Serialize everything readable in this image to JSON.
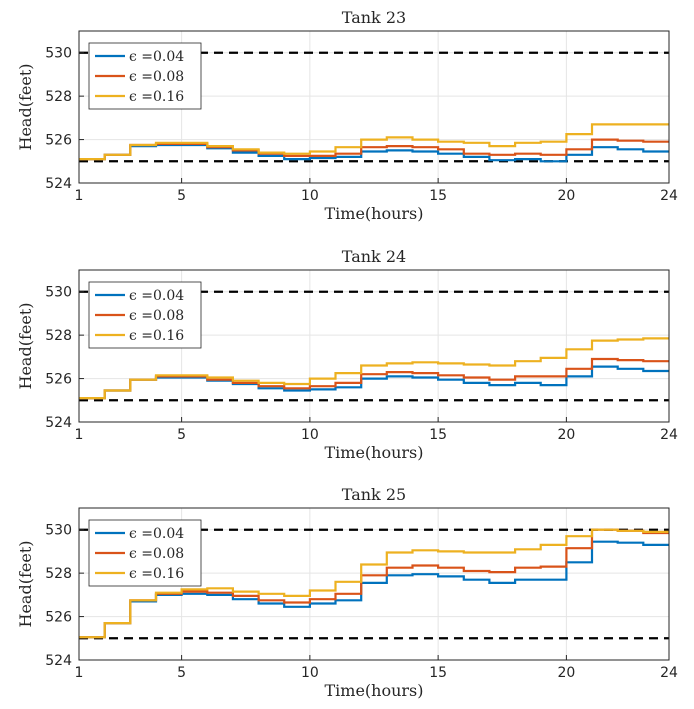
{
  "chart_data": [
    {
      "type": "line",
      "step": true,
      "title": "Tank 23",
      "xlabel": "Time(hours)",
      "ylabel": "Head(feet)",
      "xlim": [
        1,
        24
      ],
      "ylim": [
        524,
        531
      ],
      "xticks": [
        1,
        5,
        10,
        15,
        20,
        24
      ],
      "yticks": [
        524,
        526,
        528,
        530
      ],
      "grid": true,
      "legend_position": "top-left",
      "bounds": [
        525,
        530
      ],
      "x": [
        1,
        2,
        3,
        4,
        5,
        6,
        7,
        8,
        9,
        10,
        11,
        12,
        13,
        14,
        15,
        16,
        17,
        18,
        19,
        20,
        21,
        22,
        23,
        24
      ],
      "series": [
        {
          "name": "ϵ =0.04",
          "color": "#0072BD",
          "values": [
            525.1,
            525.3,
            525.7,
            525.75,
            525.75,
            525.6,
            525.4,
            525.25,
            525.1,
            525.15,
            525.2,
            525.45,
            525.5,
            525.45,
            525.35,
            525.2,
            525.05,
            525.1,
            525.0,
            525.3,
            525.65,
            525.55,
            525.45,
            525.45
          ]
        },
        {
          "name": "ϵ =0.08",
          "color": "#D95319",
          "values": [
            525.1,
            525.3,
            525.75,
            525.8,
            525.8,
            525.65,
            525.5,
            525.35,
            525.25,
            525.25,
            525.35,
            525.65,
            525.7,
            525.65,
            525.55,
            525.35,
            525.3,
            525.35,
            525.3,
            525.55,
            526.0,
            525.95,
            525.9,
            525.9
          ]
        },
        {
          "name": "ϵ =0.16",
          "color": "#EDB120",
          "values": [
            525.1,
            525.3,
            525.75,
            525.85,
            525.85,
            525.7,
            525.55,
            525.4,
            525.35,
            525.45,
            525.65,
            526.0,
            526.1,
            526.0,
            525.9,
            525.85,
            525.7,
            525.85,
            525.9,
            526.25,
            526.7,
            526.7,
            526.7,
            526.7
          ]
        }
      ]
    },
    {
      "type": "line",
      "step": true,
      "title": "Tank 24",
      "xlabel": "Time(hours)",
      "ylabel": "Head(feet)",
      "xlim": [
        1,
        24
      ],
      "ylim": [
        524,
        531
      ],
      "xticks": [
        1,
        5,
        10,
        15,
        20,
        24
      ],
      "yticks": [
        524,
        526,
        528,
        530
      ],
      "grid": true,
      "legend_position": "top-left",
      "bounds": [
        525,
        530
      ],
      "x": [
        1,
        2,
        3,
        4,
        5,
        6,
        7,
        8,
        9,
        10,
        11,
        12,
        13,
        14,
        15,
        16,
        17,
        18,
        19,
        20,
        21,
        22,
        23,
        24
      ],
      "series": [
        {
          "name": "ϵ =0.04",
          "color": "#0072BD",
          "values": [
            525.1,
            525.45,
            525.95,
            526.05,
            526.05,
            525.9,
            525.75,
            525.55,
            525.45,
            525.5,
            525.6,
            526.0,
            526.1,
            526.05,
            525.95,
            525.8,
            525.7,
            525.8,
            525.7,
            526.1,
            526.55,
            526.45,
            526.35,
            526.35
          ]
        },
        {
          "name": "ϵ =0.08",
          "color": "#D95319",
          "values": [
            525.1,
            525.45,
            525.95,
            526.1,
            526.1,
            525.95,
            525.8,
            525.65,
            525.55,
            525.65,
            525.8,
            526.2,
            526.3,
            526.25,
            526.15,
            526.05,
            525.95,
            526.1,
            526.1,
            526.45,
            526.9,
            526.85,
            526.8,
            526.8
          ]
        },
        {
          "name": "ϵ =0.16",
          "color": "#EDB120",
          "values": [
            525.1,
            525.45,
            525.95,
            526.15,
            526.15,
            526.05,
            525.9,
            525.8,
            525.75,
            526.0,
            526.25,
            526.6,
            526.7,
            526.75,
            526.7,
            526.65,
            526.6,
            526.8,
            526.95,
            527.35,
            527.75,
            527.8,
            527.85,
            527.85
          ]
        }
      ]
    },
    {
      "type": "line",
      "step": true,
      "title": "Tank 25",
      "xlabel": "Time(hours)",
      "ylabel": "Head(feet)",
      "xlim": [
        1,
        24
      ],
      "ylim": [
        524,
        531
      ],
      "xticks": [
        1,
        5,
        10,
        15,
        20,
        24
      ],
      "yticks": [
        524,
        526,
        528,
        530
      ],
      "grid": true,
      "legend_position": "top-left",
      "bounds": [
        525,
        530
      ],
      "x": [
        1,
        2,
        3,
        4,
        5,
        6,
        7,
        8,
        9,
        10,
        11,
        12,
        13,
        14,
        15,
        16,
        17,
        18,
        19,
        20,
        21,
        22,
        23,
        24
      ],
      "series": [
        {
          "name": "ϵ =0.04",
          "color": "#0072BD",
          "values": [
            525.05,
            525.7,
            526.7,
            527.0,
            527.05,
            527.0,
            526.8,
            526.6,
            526.45,
            526.6,
            526.75,
            527.55,
            527.9,
            527.95,
            527.85,
            527.7,
            527.55,
            527.7,
            527.7,
            528.5,
            529.45,
            529.4,
            529.3,
            529.3
          ]
        },
        {
          "name": "ϵ =0.08",
          "color": "#D95319",
          "values": [
            525.05,
            525.7,
            526.75,
            527.05,
            527.15,
            527.1,
            526.95,
            526.75,
            526.65,
            526.8,
            527.05,
            527.9,
            528.25,
            528.35,
            528.25,
            528.1,
            528.05,
            528.25,
            528.3,
            529.15,
            530.0,
            529.95,
            529.85,
            529.85
          ]
        },
        {
          "name": "ϵ =0.16",
          "color": "#EDB120",
          "values": [
            525.05,
            525.7,
            526.75,
            527.1,
            527.25,
            527.3,
            527.15,
            527.05,
            526.95,
            527.2,
            527.6,
            528.4,
            528.95,
            529.05,
            529.0,
            528.95,
            528.95,
            529.1,
            529.3,
            529.7,
            530.0,
            529.95,
            529.9,
            529.9
          ]
        }
      ]
    }
  ]
}
